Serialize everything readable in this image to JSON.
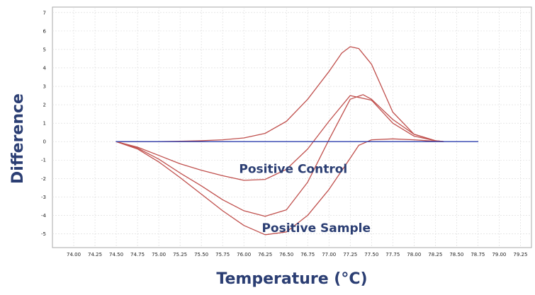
{
  "chart_data": {
    "type": "line",
    "xlabel": "Temperature (°C)",
    "ylabel": "Difference",
    "xlim": [
      73.75,
      79.38
    ],
    "ylim": [
      -5.75,
      7.3
    ],
    "x_ticks": [
      "74.00",
      "74.25",
      "74.50",
      "74.75",
      "75.00",
      "75.25",
      "75.50",
      "75.75",
      "76.00",
      "76.25",
      "76.50",
      "76.75",
      "77.00",
      "77.25",
      "77.50",
      "77.75",
      "78.00",
      "78.25",
      "78.50",
      "78.75",
      "79.00",
      "79.25"
    ],
    "y_ticks": [
      "7",
      "6",
      "5",
      "4",
      "3",
      "2",
      "1",
      "0",
      "-1",
      "-2",
      "-3",
      "-4",
      "-5"
    ],
    "grid": true,
    "colors": {
      "curves": "#c0504d",
      "baseline": "#2e3fae",
      "grid": "#d9d9d9",
      "text": "#2b3e73"
    },
    "annotations": [
      {
        "text": "Positive Control",
        "x": 76.58,
        "y": -1.7
      },
      {
        "text": "Positive Sample",
        "x": 76.85,
        "y": -4.9
      }
    ],
    "series": [
      {
        "x": [
          74.5,
          74.75,
          75.0,
          75.25,
          75.5,
          75.75,
          76.0,
          76.25,
          76.5,
          76.75,
          77.0,
          77.25,
          77.5,
          77.75,
          78.0,
          78.25,
          78.35
        ],
        "y": [
          0,
          -0.3,
          -0.75,
          -1.2,
          -1.55,
          -1.85,
          -2.1,
          -2.05,
          -1.5,
          -0.4,
          1.1,
          2.5,
          2.25,
          1.0,
          0.3,
          0.05,
          0
        ]
      },
      {
        "x": [
          74.5,
          74.75,
          75.0,
          75.25,
          75.5,
          75.75,
          76.0,
          76.25,
          76.5,
          76.75,
          77.0,
          77.25,
          77.4,
          77.5,
          77.75,
          78.0,
          78.25,
          78.35
        ],
        "y": [
          0,
          -0.35,
          -0.95,
          -1.7,
          -2.4,
          -3.15,
          -3.75,
          -4.05,
          -3.7,
          -2.2,
          0.1,
          2.3,
          2.55,
          2.3,
          1.2,
          0.4,
          0.05,
          0
        ]
      },
      {
        "x": [
          74.5,
          74.75,
          75.0,
          75.25,
          75.5,
          75.75,
          76.0,
          76.25,
          76.5,
          76.75,
          77.0,
          77.25,
          77.35,
          77.5,
          77.75,
          78.0,
          78.25,
          78.35
        ],
        "y": [
          0,
          -0.4,
          -1.1,
          -1.95,
          -2.85,
          -3.75,
          -4.55,
          -5.05,
          -4.9,
          -4.0,
          -2.6,
          -0.9,
          -0.2,
          0.1,
          0.15,
          0.1,
          0.02,
          0
        ]
      },
      {
        "x": [
          74.5,
          74.75,
          75.0,
          75.25,
          75.5,
          75.75,
          76.0,
          76.25,
          76.5,
          76.75,
          77.0,
          77.15,
          77.25,
          77.35,
          77.5,
          77.75,
          78.0,
          78.25,
          78.35
        ],
        "y": [
          0,
          0,
          0,
          0.02,
          0.05,
          0.1,
          0.2,
          0.45,
          1.1,
          2.3,
          3.8,
          4.8,
          5.15,
          5.05,
          4.2,
          1.6,
          0.4,
          0.05,
          0
        ]
      },
      {
        "x": [
          74.5,
          78.75
        ],
        "y": [
          0,
          0
        ]
      }
    ]
  }
}
